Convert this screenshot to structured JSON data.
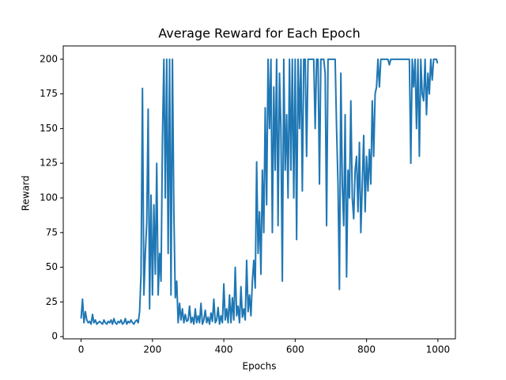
{
  "chart_data": {
    "type": "line",
    "title": "Average Reward for Each Epoch",
    "xlabel": "Epochs",
    "ylabel": "Reward",
    "xlim": [
      -50,
      1049
    ],
    "ylim": [
      -1.6,
      209.6
    ],
    "xticks": [
      0,
      200,
      400,
      600,
      800,
      1000
    ],
    "yticks": [
      0,
      25,
      50,
      75,
      100,
      125,
      150,
      175,
      200
    ],
    "x": [
      0,
      4,
      8,
      12,
      16,
      20,
      24,
      28,
      32,
      36,
      40,
      44,
      48,
      52,
      56,
      60,
      64,
      68,
      72,
      76,
      80,
      84,
      88,
      92,
      96,
      100,
      104,
      108,
      112,
      116,
      120,
      124,
      128,
      132,
      136,
      140,
      144,
      148,
      152,
      156,
      160,
      164,
      168,
      172,
      176,
      180,
      184,
      188,
      192,
      196,
      200,
      204,
      208,
      212,
      216,
      220,
      224,
      228,
      232,
      236,
      240,
      244,
      248,
      252,
      256,
      260,
      264,
      268,
      272,
      276,
      280,
      284,
      288,
      292,
      296,
      300,
      304,
      308,
      312,
      316,
      320,
      324,
      328,
      332,
      336,
      340,
      344,
      348,
      352,
      356,
      360,
      364,
      368,
      372,
      376,
      380,
      384,
      388,
      392,
      396,
      400,
      404,
      408,
      412,
      416,
      420,
      424,
      428,
      432,
      436,
      440,
      444,
      448,
      452,
      456,
      460,
      464,
      468,
      472,
      476,
      480,
      484,
      488,
      492,
      496,
      500,
      504,
      508,
      512,
      516,
      520,
      524,
      528,
      532,
      536,
      540,
      544,
      548,
      552,
      556,
      560,
      564,
      568,
      572,
      576,
      580,
      584,
      588,
      592,
      596,
      600,
      604,
      608,
      612,
      616,
      620,
      624,
      628,
      632,
      636,
      640,
      644,
      648,
      652,
      656,
      660,
      664,
      668,
      672,
      676,
      680,
      684,
      688,
      692,
      696,
      700,
      704,
      708,
      712,
      716,
      720,
      724,
      728,
      732,
      736,
      740,
      744,
      748,
      752,
      756,
      760,
      764,
      768,
      772,
      776,
      780,
      784,
      788,
      792,
      796,
      800,
      804,
      808,
      812,
      816,
      820,
      824,
      828,
      832,
      836,
      840,
      844,
      848,
      852,
      856,
      860,
      864,
      868,
      872,
      876,
      880,
      884,
      888,
      892,
      896,
      900,
      904,
      908,
      912,
      916,
      920,
      924,
      928,
      932,
      936,
      940,
      944,
      948,
      952,
      956,
      960,
      964,
      968,
      972,
      976,
      980,
      984,
      988,
      992,
      996,
      999
    ],
    "series": [
      {
        "name": "Reward",
        "color": "#1f77b4",
        "values": [
          13,
          27,
          10,
          18,
          12,
          10,
          11,
          9,
          16,
          10,
          12,
          9,
          10,
          11,
          10,
          9,
          12,
          10,
          9,
          11,
          10,
          12,
          9,
          13,
          10,
          9,
          11,
          10,
          12,
          9,
          10,
          13,
          9,
          11,
          10,
          12,
          10,
          9,
          11,
          12,
          10,
          18,
          45,
          179,
          30,
          60,
          82,
          164,
          20,
          102,
          30,
          95,
          45,
          125,
          30,
          60,
          40,
          143,
          200,
          100,
          200,
          60,
          200,
          30,
          200,
          90,
          28,
          40,
          10,
          24,
          12,
          20,
          10,
          16,
          11,
          12,
          22,
          10,
          14,
          9,
          20,
          10,
          15,
          10,
          24,
          9,
          12,
          19,
          10,
          14,
          9,
          17,
          11,
          27,
          10,
          12,
          21,
          9,
          15,
          10,
          38,
          12,
          20,
          10,
          30,
          10,
          28,
          12,
          50,
          15,
          22,
          10,
          36,
          14,
          20,
          12,
          55,
          18,
          30,
          15,
          40,
          55,
          35,
          126,
          60,
          90,
          45,
          120,
          75,
          165,
          95,
          200,
          150,
          200,
          75,
          180,
          120,
          200,
          80,
          190,
          150,
          40,
          200,
          120,
          160,
          100,
          200,
          120,
          200,
          100,
          200,
          70,
          200,
          150,
          200,
          105,
          200,
          200,
          130,
          200,
          200,
          200,
          200,
          200,
          150,
          200,
          200,
          110,
          200,
          200,
          200,
          190,
          80,
          200,
          200,
          200,
          200,
          200,
          200,
          150,
          110,
          34,
          190,
          110,
          80,
          160,
          43,
          120,
          100,
          170,
          100,
          85,
          120,
          130,
          90,
          140,
          75,
          110,
          145,
          90,
          130,
          105,
          135,
          110,
          170,
          130,
          175,
          180,
          200,
          180,
          200,
          200,
          200,
          200,
          200,
          200,
          196,
          200,
          200,
          200,
          200,
          200,
          200,
          200,
          200,
          200,
          200,
          200,
          200,
          200,
          200,
          125,
          200,
          180,
          200,
          150,
          200,
          130,
          200,
          175,
          170,
          200,
          160,
          190,
          175,
          200,
          185,
          200,
          200,
          200,
          197
        ]
      }
    ]
  }
}
